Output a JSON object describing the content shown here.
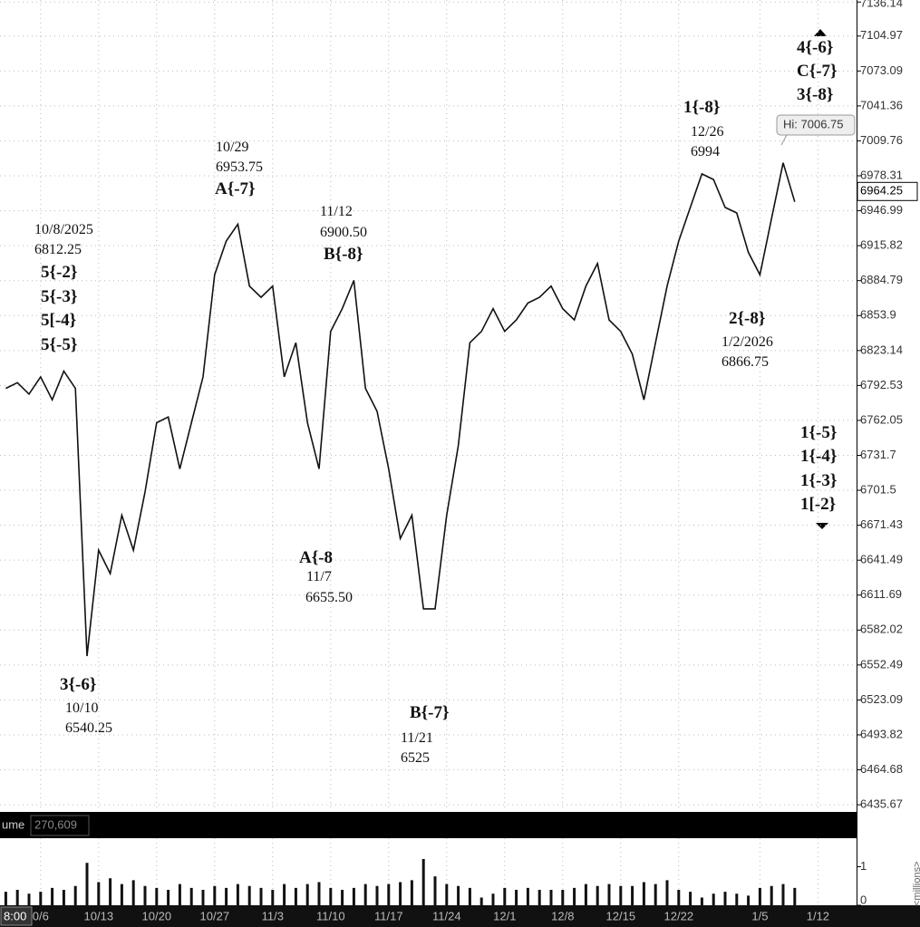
{
  "chart_data": [
    {
      "type": "line",
      "log": true,
      "grid": true,
      "color": "#111",
      "ylim": [
        6432,
        7138
      ],
      "yticks": [
        7136.14,
        7104.97,
        7073.09,
        7041.36,
        7009.76,
        6978.31,
        6946.99,
        6915.82,
        6884.79,
        6853.9,
        6823.14,
        6792.53,
        6762.05,
        6731.7,
        6701.5,
        6671.43,
        6641.49,
        6611.69,
        6582.02,
        6552.49,
        6523.09,
        6493.82,
        6464.68,
        6435.67
      ],
      "categories": [
        null,
        null,
        null,
        "0/6",
        null,
        null,
        null,
        null,
        "10/13",
        null,
        null,
        null,
        null,
        "10/20",
        null,
        null,
        null,
        null,
        "10/27",
        null,
        null,
        null,
        null,
        "11/3",
        null,
        null,
        null,
        null,
        "11/10",
        null,
        null,
        null,
        null,
        "11/17",
        null,
        null,
        null,
        null,
        "11/24",
        null,
        null,
        null,
        null,
        "12/1",
        null,
        null,
        null,
        null,
        "12/8",
        null,
        null,
        null,
        null,
        "12/15",
        null,
        null,
        null,
        null,
        "12/22",
        null,
        null,
        null,
        null,
        null,
        null,
        "1/5",
        null,
        null,
        null,
        null,
        "1/12"
      ],
      "values": [
        6790,
        6795,
        6785,
        6800,
        6780,
        6805,
        6790,
        6560,
        6650,
        6630,
        6680,
        6650,
        6700,
        6760,
        6765,
        6720,
        6760,
        6800,
        6890,
        6920,
        6935,
        6880,
        6870,
        6880,
        6800,
        6830,
        6760,
        6720,
        6840,
        6860,
        6885,
        6790,
        6770,
        6720,
        6660,
        6680,
        6600,
        6600,
        6680,
        6740,
        6830,
        6840,
        6860,
        6840,
        6850,
        6865,
        6870,
        6880,
        6860,
        6850,
        6880,
        6900,
        6850,
        6840,
        6820,
        6780,
        6830,
        6880,
        6920,
        6950,
        6980,
        6975,
        6950,
        6945,
        6910,
        6890,
        6940,
        6990,
        6955,
        null,
        null
      ],
      "last_price": 6964.25,
      "hi_label": "Hi: 7006.75",
      "time_label": "8:00",
      "annotations": [
        "10/8/2025",
        "6812.25",
        "5{-2}",
        "5{-3}",
        "5[-4}",
        "5{-5}",
        "10/29",
        "6953.75",
        "A{-7}",
        "11/12",
        "6900.50",
        "B{-8}",
        "A{-8",
        "11/7",
        "6655.50",
        "3{-6}",
        "10/10",
        "6540.25",
        "B{-7}",
        "11/21",
        "6525",
        "1{-8}",
        "12/26",
        "6994",
        "2{-8}",
        "1/2/2026",
        "6866.75",
        "4{-6}",
        "C{-7}",
        "3{-8}",
        "1{-5}",
        "1{-4}",
        "1{-3}",
        "1[-2}"
      ]
    },
    {
      "type": "bar",
      "color": "#111",
      "ylim": [
        0,
        1.74
      ],
      "yticks": [
        0,
        1
      ],
      "title": "ume",
      "total": "270,609",
      "y_label": "<millions>",
      "values": [
        0.35,
        0.4,
        0.3,
        0.35,
        0.45,
        0.4,
        0.5,
        1.1,
        0.6,
        0.7,
        0.55,
        0.65,
        0.5,
        0.45,
        0.4,
        0.55,
        0.45,
        0.4,
        0.5,
        0.45,
        0.55,
        0.5,
        0.45,
        0.4,
        0.55,
        0.45,
        0.55,
        0.6,
        0.45,
        0.4,
        0.45,
        0.55,
        0.5,
        0.55,
        0.6,
        0.65,
        1.2,
        0.75,
        0.55,
        0.5,
        0.45,
        0.2,
        0.3,
        0.45,
        0.4,
        0.45,
        0.4,
        0.4,
        0.4,
        0.45,
        0.55,
        0.5,
        0.55,
        0.5,
        0.5,
        0.6,
        0.55,
        0.65,
        0.4,
        0.35,
        0.2,
        0.3,
        0.35,
        0.3,
        0.25,
        0.45,
        0.5,
        0.55,
        0.45,
        null,
        null
      ]
    }
  ]
}
